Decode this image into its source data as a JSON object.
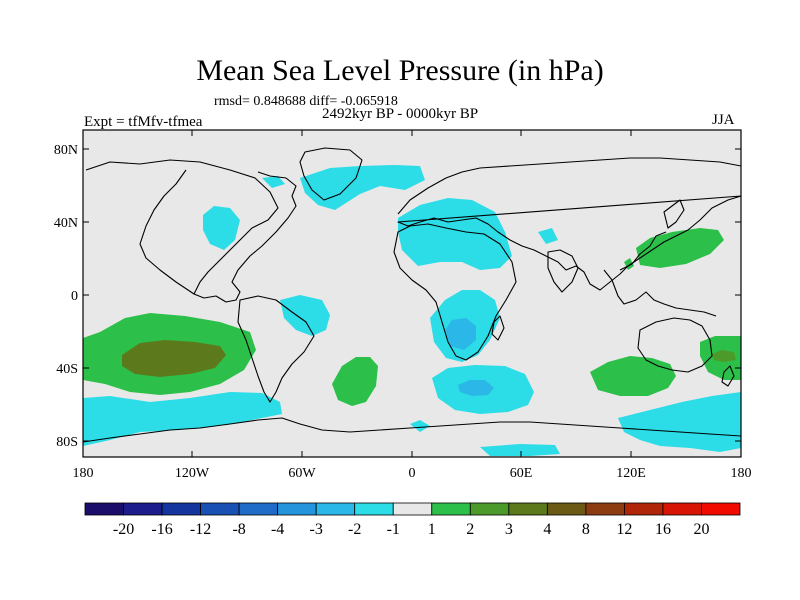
{
  "map": {
    "title": "Mean Sea Level Pressure (in hPa)",
    "stats": "rmsd= 0.848688 diff= -0.065918",
    "period": "2492kyr BP - 0000kyr BP",
    "experiment": "Expt = tfMfv-tfmea",
    "season": "JJA",
    "lat_labels": [
      "80N",
      "40N",
      "0",
      "40S",
      "80S"
    ],
    "lon_labels": [
      "180",
      "120W",
      "60W",
      "0",
      "60E",
      "120E",
      "180"
    ]
  },
  "legend": {
    "labels": [
      "-20",
      "-16",
      "-12",
      "-8",
      "-4",
      "-3",
      "-2",
      "-1",
      "1",
      "2",
      "3",
      "4",
      "8",
      "12",
      "16",
      "20"
    ],
    "colors": [
      "#1b0e6b",
      "#1c1c8c",
      "#14349e",
      "#1850b4",
      "#1e6cc8",
      "#2494dc",
      "#2bb8e8",
      "#2cdce6",
      "#e8e8e8",
      "#2cc04a",
      "#4c9a2a",
      "#5c7a1c",
      "#6a5a16",
      "#8c3c10",
      "#b02408",
      "#d81404",
      "#f00a00"
    ]
  },
  "colors": {
    "ocean_neutral": "#e8e8e8",
    "negative_light": "#2cdce6",
    "negative_mid": "#2bb8e8",
    "negative_strong": "#2494dc",
    "positive_light": "#2cc04a",
    "positive_mid": "#4c9a2a",
    "positive_strong": "#5c7a1c"
  }
}
